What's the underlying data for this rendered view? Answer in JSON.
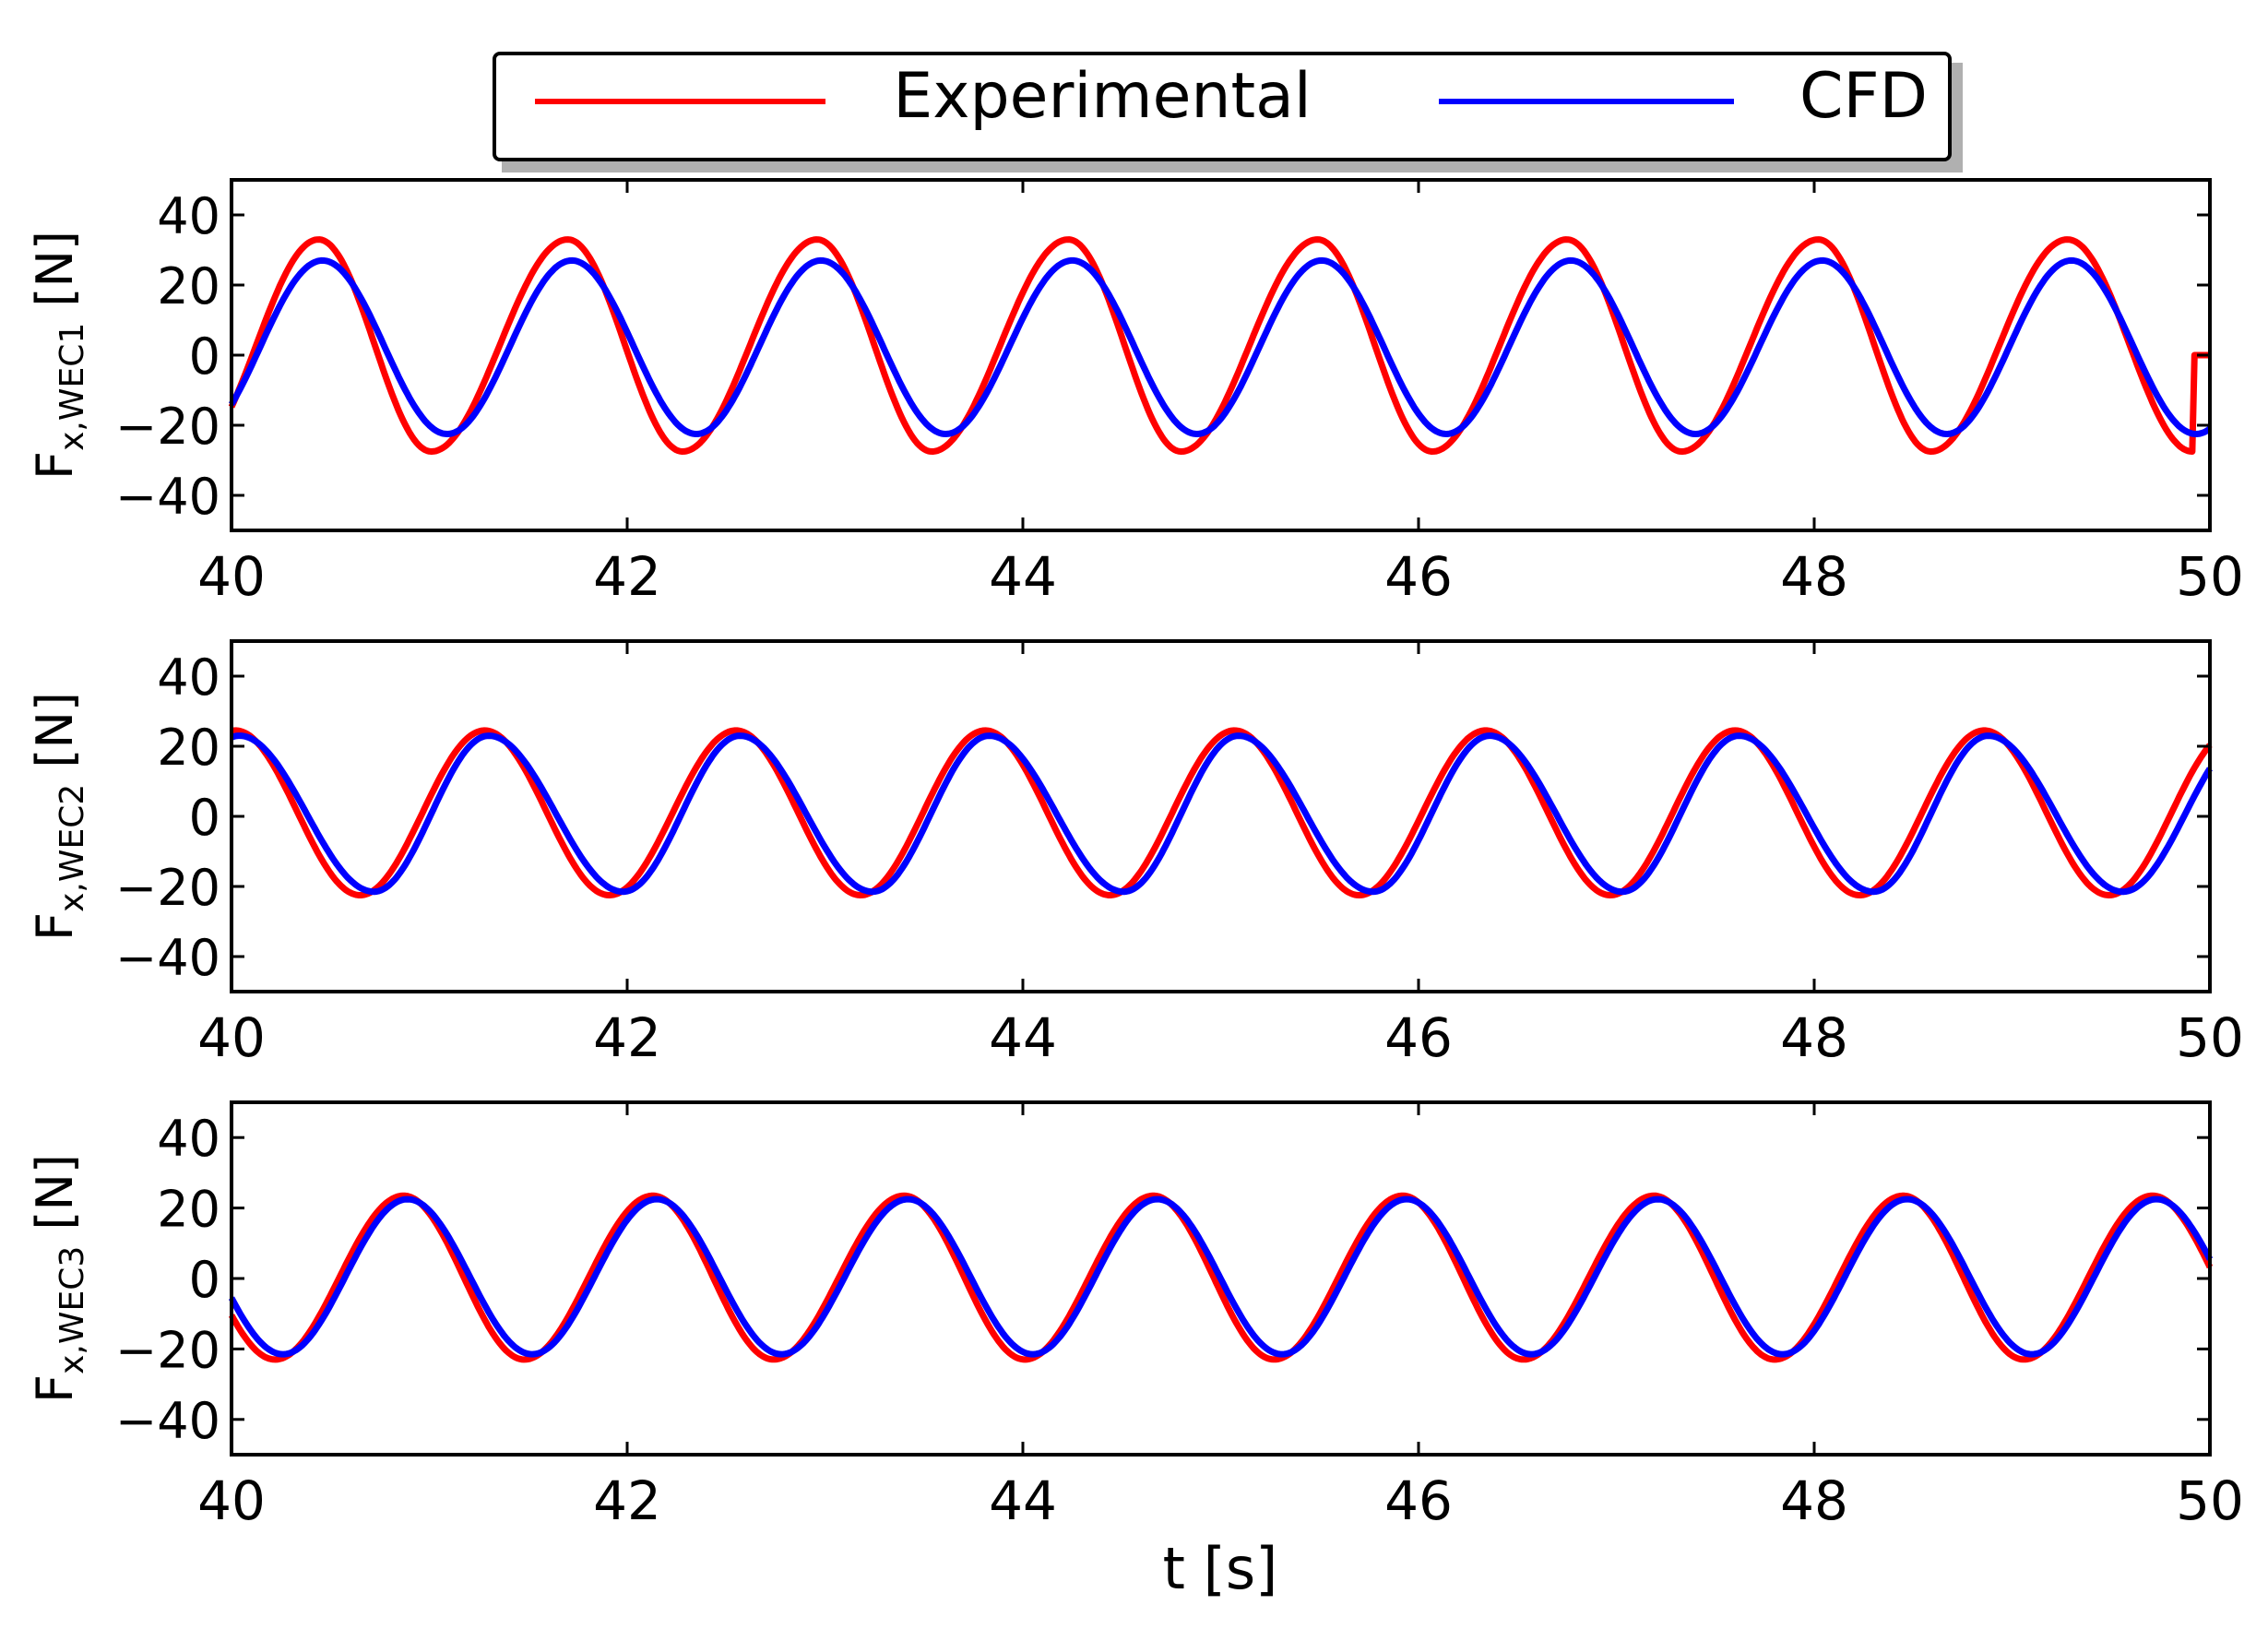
{
  "legend": {
    "entries": [
      {
        "name": "Experimental",
        "color": "#ff0000"
      },
      {
        "name": "CFD",
        "color": "#0000ff"
      }
    ]
  },
  "chart_data": {
    "type": "line",
    "shared_xlabel": "t [s]",
    "x_ticks": [
      40,
      42,
      44,
      46,
      48,
      50
    ],
    "y_ticks": [
      -40,
      -20,
      0,
      20,
      40
    ],
    "x_tick_labels": [
      "40",
      "42",
      "44",
      "46",
      "48",
      "50"
    ],
    "y_tick_labels": [
      "−40",
      "−20",
      "0",
      "20",
      "40"
    ],
    "panels": [
      {
        "ylabel_main": "F",
        "ylabel_sub": "x,WEC1",
        "ylabel_unit": " [N]",
        "xlim": [
          40,
          50
        ],
        "ylim": [
          -50,
          50
        ],
        "period": 1.263,
        "series": [
          {
            "name": "Experimental",
            "color": "#ff0000",
            "peak_times": [
              40.44,
              41.7,
              42.96,
              44.23,
              45.49,
              46.75,
              48.02,
              49.28
            ],
            "trough_times": [
              41.01,
              42.28,
              43.54,
              44.8,
              46.07,
              47.33,
              48.59
            ],
            "peak_value": 33,
            "trough_value": -27.5
          },
          {
            "name": "CFD",
            "color": "#0000ff",
            "peak_times": [
              40.46,
              41.72,
              42.98,
              44.25,
              45.51,
              46.77,
              48.04,
              49.3
            ],
            "trough_times": [
              41.09,
              42.35,
              43.61,
              44.88,
              46.14,
              47.4,
              48.67,
              49.93
            ],
            "peak_value": 27,
            "trough_value": -22.5
          }
        ]
      },
      {
        "ylabel_main": "F",
        "ylabel_sub": "x,WEC2",
        "ylabel_unit": " [N]",
        "xlim": [
          40,
          50
        ],
        "ylim": [
          -50,
          50
        ],
        "period": 1.263,
        "series": [
          {
            "name": "Experimental",
            "color": "#ff0000",
            "peak_times": [
              40.02,
              41.28,
              42.55,
              43.81,
              45.07,
              46.34,
              47.6,
              48.86
            ],
            "trough_times": [
              40.65,
              41.91,
              43.18,
              44.44,
              45.7,
              46.97,
              48.23,
              49.49
            ],
            "peak_value": 24.5,
            "trough_value": -22.5
          },
          {
            "name": "CFD",
            "color": "#0000ff",
            "peak_times": [
              40.04,
              41.3,
              42.57,
              43.83,
              45.09,
              46.36,
              47.62,
              48.88
            ],
            "trough_times": [
              40.72,
              41.98,
              43.24,
              44.51,
              45.77,
              47.03,
              48.3,
              49.56
            ],
            "peak_value": 23,
            "trough_value": -21.5
          }
        ]
      },
      {
        "ylabel_main": "F",
        "ylabel_sub": "x,WEC3",
        "ylabel_unit": " [N]",
        "xlim": [
          40,
          50
        ],
        "ylim": [
          -50,
          50
        ],
        "period": 1.263,
        "series": [
          {
            "name": "Experimental",
            "color": "#ff0000",
            "peak_times": [
              40.87,
              42.13,
              43.4,
              44.66,
              45.92,
              47.19,
              48.45,
              49.71
            ],
            "trough_times": [
              40.22,
              41.48,
              42.74,
              44.01,
              45.27,
              46.53,
              47.8,
              49.06
            ],
            "peak_value": 23.5,
            "trough_value": -23
          },
          {
            "name": "CFD",
            "color": "#0000ff",
            "peak_times": [
              40.89,
              42.15,
              43.42,
              44.68,
              45.94,
              47.21,
              48.47,
              49.73
            ],
            "trough_times": [
              40.26,
              41.52,
              42.78,
              44.05,
              45.31,
              46.57,
              47.84,
              49.1
            ],
            "peak_value": 22.5,
            "trough_value": -21.5
          }
        ]
      }
    ]
  }
}
